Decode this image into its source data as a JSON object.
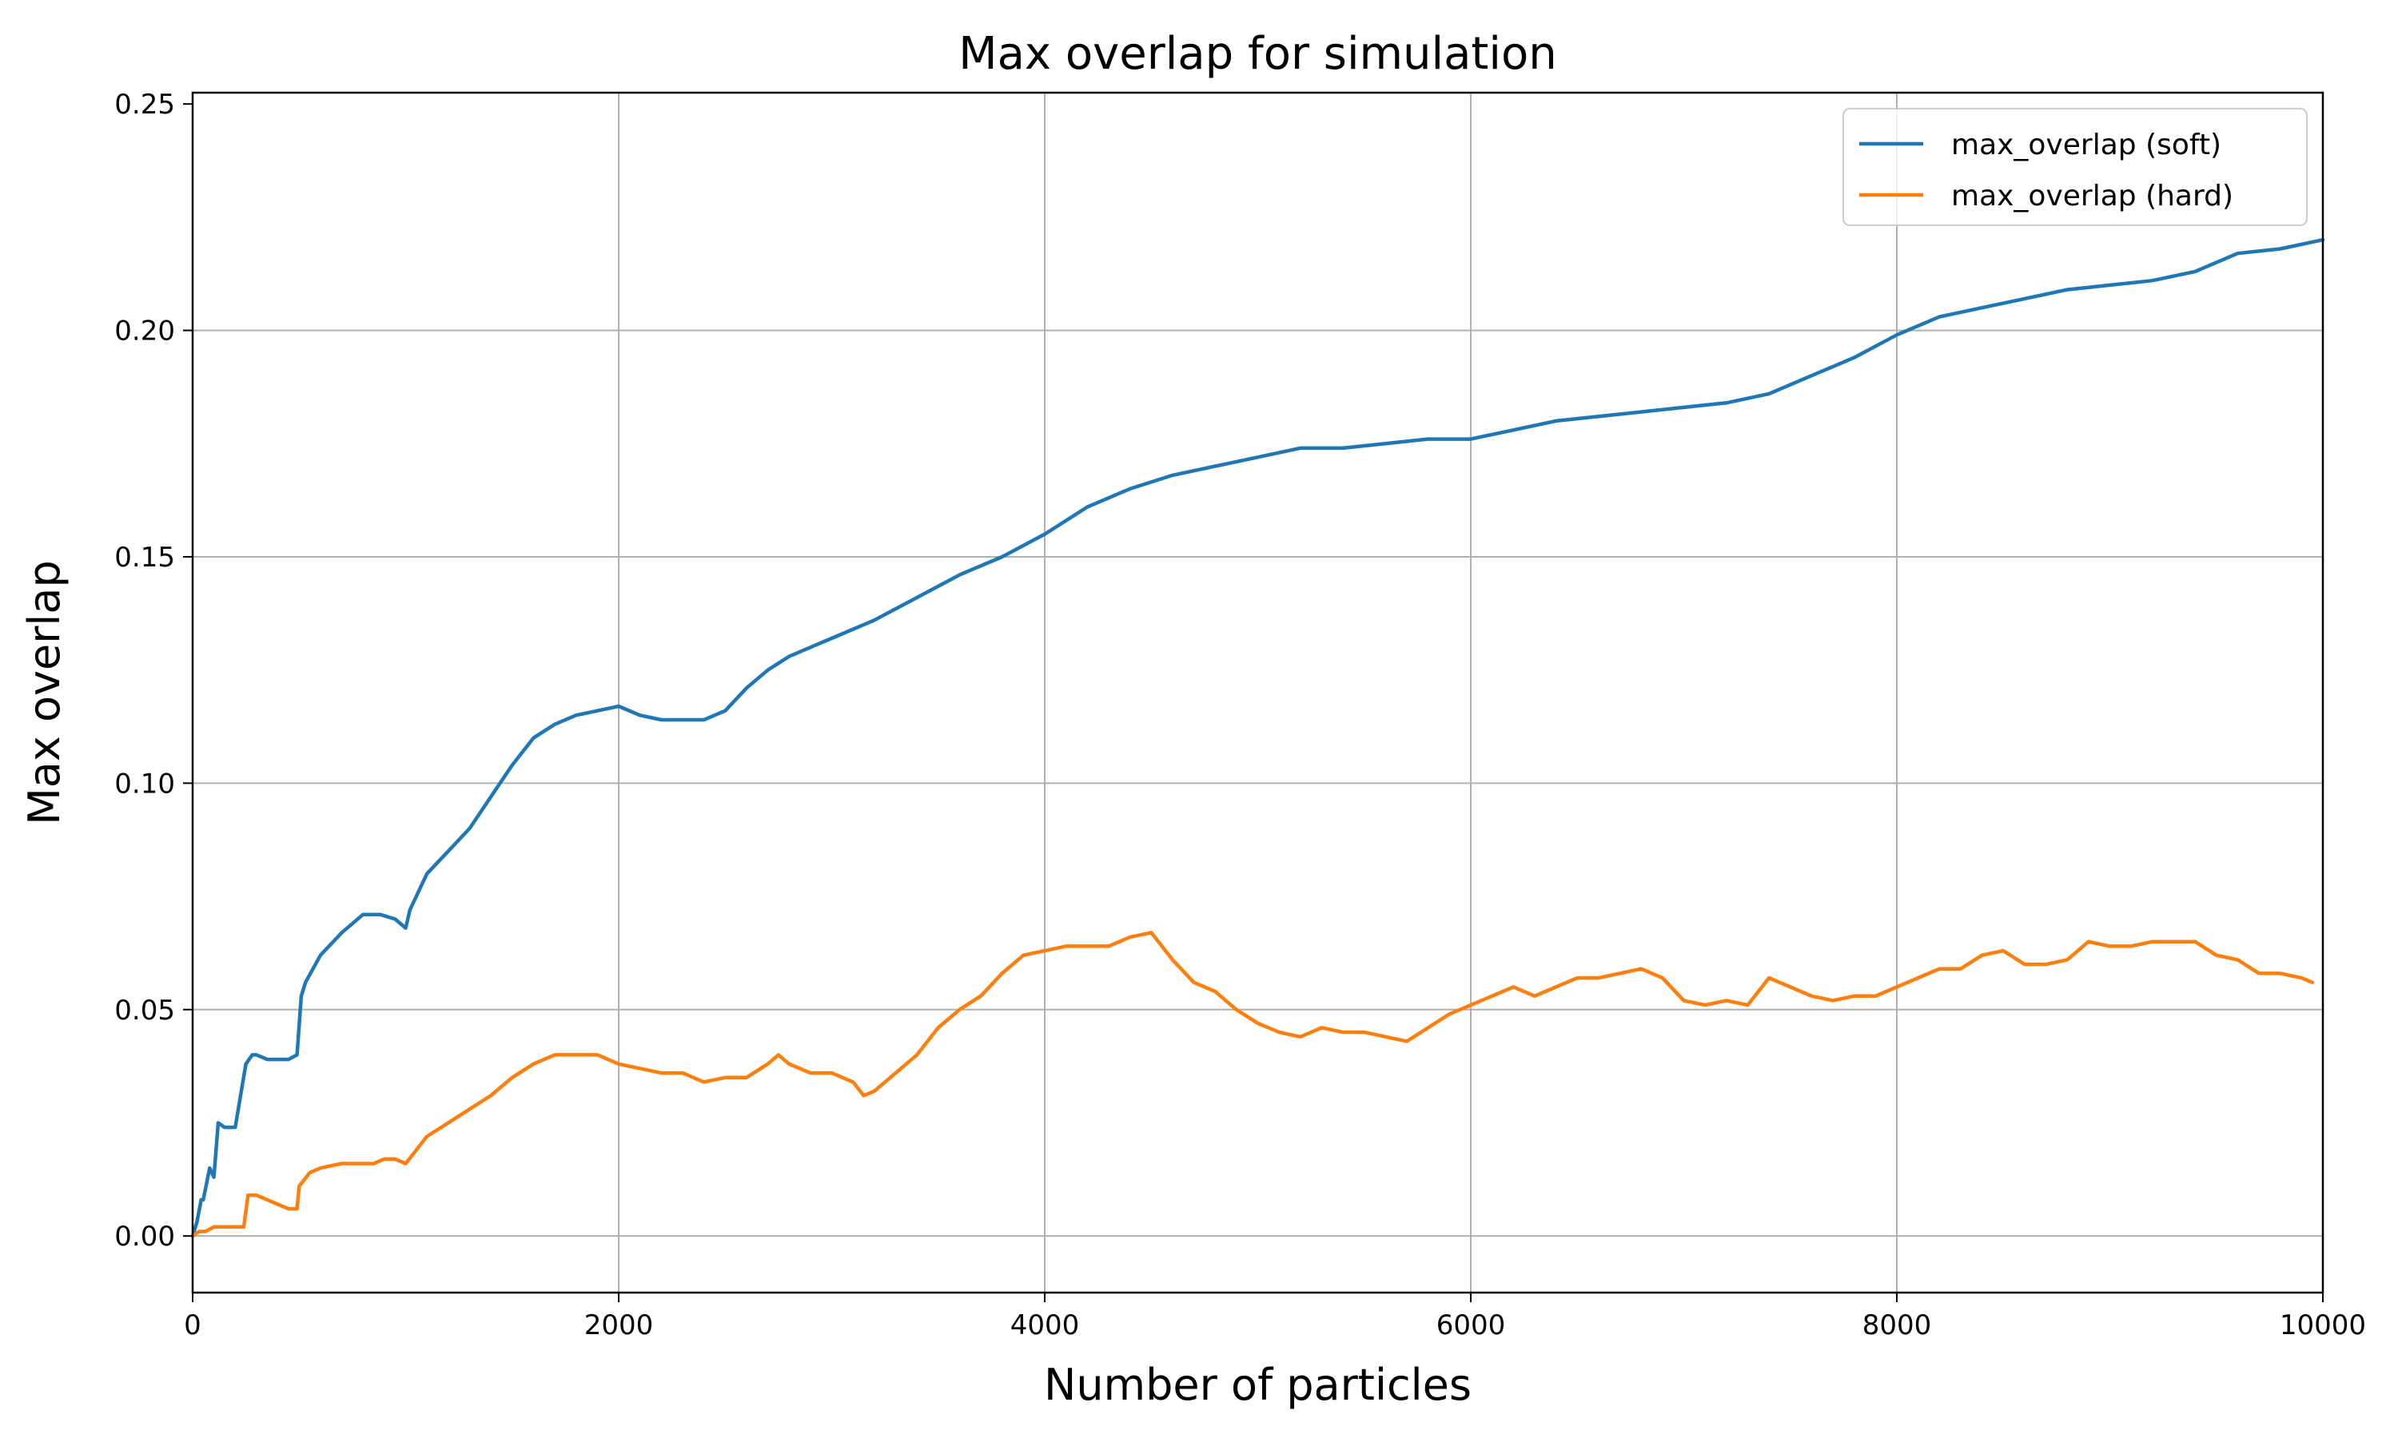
{
  "chart_data": {
    "type": "line",
    "title": "Max overlap for simulation",
    "xlabel": "Number of particles",
    "ylabel": "Max overlap",
    "xlim": [
      0,
      10000
    ],
    "ylim": [
      -0.0125,
      0.2525
    ],
    "xticks": [
      0,
      2000,
      4000,
      6000,
      8000,
      10000
    ],
    "xtick_labels": [
      "0",
      "2000",
      "4000",
      "6000",
      "8000",
      "10000"
    ],
    "yticks": [
      0.0,
      0.05,
      0.1,
      0.15,
      0.2,
      0.25
    ],
    "ytick_labels": [
      "0.00",
      "0.05",
      "0.10",
      "0.15",
      "0.20",
      "0.25"
    ],
    "grid": true,
    "legend_position": "top-right",
    "series": [
      {
        "name": "max_overlap (soft)",
        "color": "#1f77b4",
        "x": [
          0,
          20,
          40,
          50,
          80,
          100,
          120,
          150,
          180,
          200,
          250,
          280,
          300,
          350,
          400,
          450,
          490,
          510,
          530,
          600,
          700,
          800,
          880,
          950,
          1000,
          1020,
          1100,
          1200,
          1300,
          1400,
          1500,
          1600,
          1700,
          1800,
          1900,
          2000,
          2050,
          2100,
          2200,
          2300,
          2400,
          2500,
          2600,
          2700,
          2800,
          2900,
          3000,
          3200,
          3400,
          3600,
          3800,
          4000,
          4200,
          4400,
          4600,
          4800,
          5000,
          5200,
          5400,
          5600,
          5800,
          6000,
          6200,
          6400,
          6600,
          6800,
          7000,
          7200,
          7400,
          7600,
          7800,
          8000,
          8200,
          8400,
          8600,
          8800,
          9000,
          9200,
          9400,
          9600,
          9800,
          10000
        ],
        "y": [
          0.0,
          0.003,
          0.008,
          0.008,
          0.015,
          0.013,
          0.025,
          0.024,
          0.024,
          0.024,
          0.038,
          0.04,
          0.04,
          0.039,
          0.039,
          0.039,
          0.04,
          0.053,
          0.056,
          0.062,
          0.067,
          0.071,
          0.071,
          0.07,
          0.068,
          0.072,
          0.08,
          0.085,
          0.09,
          0.097,
          0.104,
          0.11,
          0.113,
          0.115,
          0.116,
          0.117,
          0.116,
          0.115,
          0.114,
          0.114,
          0.114,
          0.116,
          0.121,
          0.125,
          0.128,
          0.13,
          0.132,
          0.136,
          0.141,
          0.146,
          0.15,
          0.155,
          0.161,
          0.165,
          0.168,
          0.17,
          0.172,
          0.174,
          0.174,
          0.175,
          0.176,
          0.176,
          0.178,
          0.18,
          0.181,
          0.182,
          0.183,
          0.184,
          0.186,
          0.19,
          0.194,
          0.199,
          0.203,
          0.205,
          0.207,
          0.209,
          0.21,
          0.211,
          0.213,
          0.217,
          0.218,
          0.22
        ]
      },
      {
        "name": "max_overlap (hard)",
        "color": "#ff7f0e",
        "x": [
          0,
          30,
          60,
          100,
          150,
          200,
          240,
          260,
          300,
          350,
          400,
          450,
          490,
          500,
          550,
          600,
          700,
          800,
          850,
          900,
          950,
          1000,
          1050,
          1100,
          1200,
          1300,
          1400,
          1500,
          1600,
          1700,
          1800,
          1900,
          2000,
          2100,
          2200,
          2300,
          2400,
          2500,
          2600,
          2700,
          2750,
          2800,
          2900,
          3000,
          3100,
          3150,
          3200,
          3300,
          3400,
          3500,
          3600,
          3700,
          3800,
          3900,
          4000,
          4100,
          4200,
          4300,
          4400,
          4500,
          4600,
          4700,
          4800,
          4900,
          5000,
          5100,
          5200,
          5300,
          5400,
          5500,
          5600,
          5700,
          5800,
          5900,
          6000,
          6100,
          6200,
          6300,
          6400,
          6500,
          6600,
          6700,
          6800,
          6900,
          7000,
          7100,
          7200,
          7300,
          7400,
          7500,
          7600,
          7700,
          7800,
          7900,
          8000,
          8100,
          8200,
          8300,
          8400,
          8500,
          8600,
          8700,
          8800,
          8900,
          9000,
          9100,
          9200,
          9300,
          9400,
          9500,
          9600,
          9700,
          9800,
          9900,
          9950
        ],
        "y": [
          0.0,
          0.001,
          0.001,
          0.002,
          0.002,
          0.002,
          0.002,
          0.009,
          0.009,
          0.008,
          0.007,
          0.006,
          0.006,
          0.011,
          0.014,
          0.015,
          0.016,
          0.016,
          0.016,
          0.017,
          0.017,
          0.016,
          0.019,
          0.022,
          0.025,
          0.028,
          0.031,
          0.035,
          0.038,
          0.04,
          0.04,
          0.04,
          0.038,
          0.037,
          0.036,
          0.036,
          0.034,
          0.035,
          0.035,
          0.038,
          0.04,
          0.038,
          0.036,
          0.036,
          0.034,
          0.031,
          0.032,
          0.036,
          0.04,
          0.046,
          0.05,
          0.053,
          0.058,
          0.062,
          0.063,
          0.064,
          0.064,
          0.064,
          0.066,
          0.067,
          0.061,
          0.056,
          0.054,
          0.05,
          0.047,
          0.045,
          0.044,
          0.046,
          0.045,
          0.045,
          0.044,
          0.043,
          0.046,
          0.049,
          0.051,
          0.053,
          0.055,
          0.053,
          0.055,
          0.057,
          0.057,
          0.058,
          0.059,
          0.057,
          0.052,
          0.051,
          0.052,
          0.051,
          0.057,
          0.055,
          0.053,
          0.052,
          0.053,
          0.053,
          0.055,
          0.057,
          0.059,
          0.059,
          0.062,
          0.063,
          0.06,
          0.06,
          0.061,
          0.065,
          0.064,
          0.064,
          0.065,
          0.065,
          0.065,
          0.062,
          0.061,
          0.058,
          0.058,
          0.057,
          0.056
        ]
      }
    ]
  }
}
